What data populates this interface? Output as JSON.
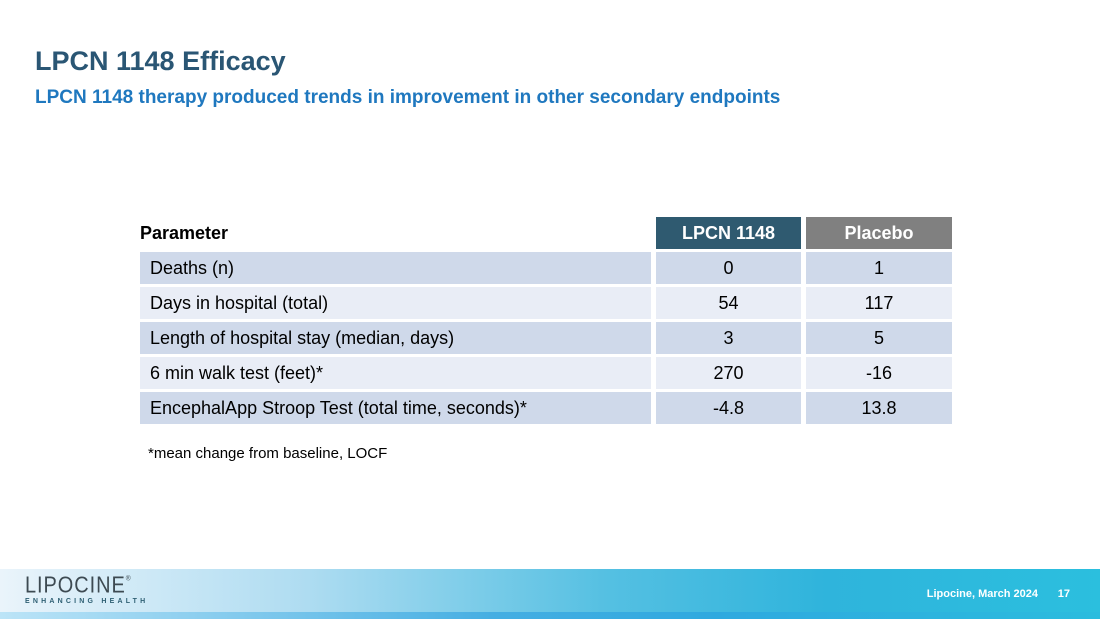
{
  "slide": {
    "title": "LPCN 1148 Efficacy",
    "subtitle": "LPCN 1148 therapy produced trends in improvement in other secondary endpoints"
  },
  "table": {
    "columns": [
      "Parameter",
      "LPCN 1148",
      "Placebo"
    ],
    "rows": [
      {
        "parameter": "Deaths (n)",
        "lpcn_1148": "0",
        "placebo": "1"
      },
      {
        "parameter": "Days in hospital (total)",
        "lpcn_1148": "54",
        "placebo": "117"
      },
      {
        "parameter": "Length of hospital stay (median, days)",
        "lpcn_1148": "3",
        "placebo": "5"
      },
      {
        "parameter": "6 min walk test (feet)*",
        "lpcn_1148": "270",
        "placebo": "-16"
      },
      {
        "parameter": "EncephalApp Stroop Test (total time, seconds)*",
        "lpcn_1148": "-4.8",
        "placebo": "13.8"
      }
    ]
  },
  "footnote": "*mean change from baseline, LOCF",
  "footer": {
    "logo_text": "LIPOCINE",
    "logo_mark": "®",
    "logo_tagline": "ENHANCING HEALTH",
    "credit": "Lipocine, March 2024",
    "page_number": "17"
  },
  "colors": {
    "title_text": "#2A5674",
    "subtitle_text": "#1F78BF",
    "header_lpcn_bg": "#2F5A70",
    "header_placebo_bg": "#808080",
    "row_alt_dark": "#CFD9EA",
    "row_alt_light": "#E9EDF6",
    "footer_cyan": "#2BBFDE"
  }
}
